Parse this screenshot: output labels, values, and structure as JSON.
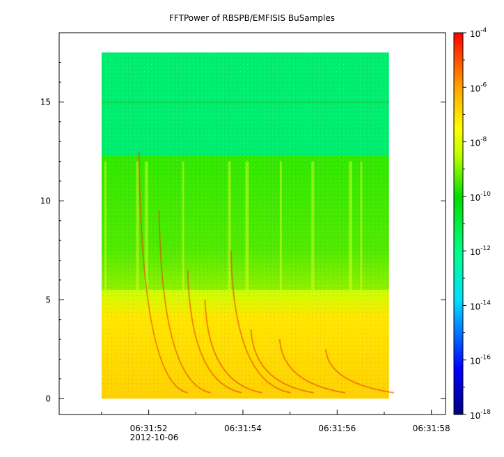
{
  "chart_data": {
    "type": "heatmap",
    "title": "FFTPower of RBSPB/EMFISIS  BuSamples",
    "xlabel": "",
    "ylabel": "",
    "x_date": "2012-10-06",
    "x_ticks": [
      {
        "t": 52,
        "label": "06:31:52"
      },
      {
        "t": 54,
        "label": "06:31:54"
      },
      {
        "t": 56,
        "label": "06:31:56"
      },
      {
        "t": 58,
        "label": "06:31:58"
      }
    ],
    "x_range_seconds_after_06_31": [
      50.1,
      58.3
    ],
    "data_extent_seconds_after_06_31": [
      51.0,
      57.1
    ],
    "y_ticks": [
      0,
      5,
      10,
      15
    ],
    "ylim": [
      -0.8,
      18.5
    ],
    "data_extent_y": [
      0,
      17.5
    ],
    "colorbar": {
      "scale": "log",
      "range": [
        1e-18,
        0.0001
      ],
      "tick_bases": [
        "10",
        "10",
        "10",
        "10",
        "10",
        "10",
        "10",
        "10"
      ],
      "tick_exponents": [
        "-4",
        "-6",
        "-8",
        "-10",
        "-12",
        "-14",
        "-16",
        "-18"
      ],
      "colors": [
        "#0000a0",
        "#0000ff",
        "#00c8ff",
        "#00ff80",
        "#00e000",
        "#a0ff00",
        "#ffff00",
        "#ffa000",
        "#ff0000"
      ]
    },
    "regions": [
      {
        "y_from": 12.3,
        "y_to": 17.5,
        "level": "~1e-12",
        "color": "#00ee70"
      },
      {
        "y_from": 5.5,
        "y_to": 12.3,
        "level": "~1e-10",
        "color": "#40e800"
      },
      {
        "y_from": 0,
        "y_to": 5.5,
        "level": "~1e-8",
        "color": "#ffd400"
      }
    ],
    "features": [
      {
        "type": "line",
        "y": 15.0,
        "note": "horizontal line"
      },
      {
        "type": "chorus-arcs",
        "color": "#e84000"
      }
    ]
  }
}
